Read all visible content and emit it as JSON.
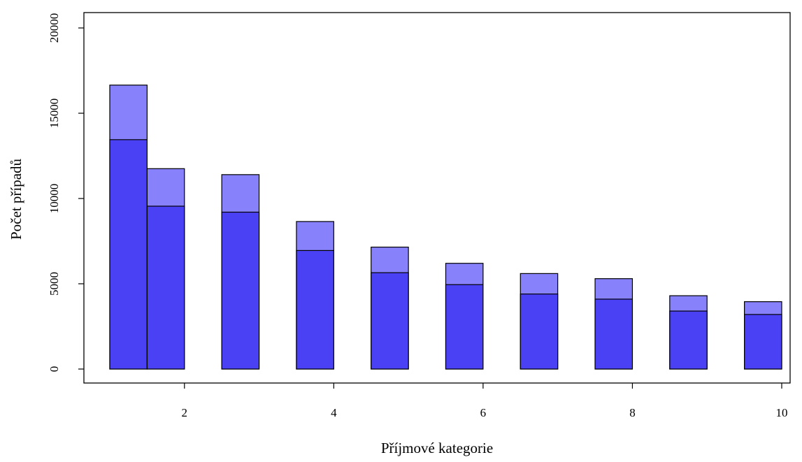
{
  "chart_data": {
    "type": "bar",
    "title": "",
    "xlabel": "Příjmové kategorie",
    "ylabel": "Počet případů",
    "xlim": [
      0.6,
      10.2
    ],
    "ylim": [
      0,
      20000
    ],
    "x_ticks": [
      2,
      4,
      6,
      8,
      10
    ],
    "y_ticks": [
      0,
      5000,
      10000,
      15000,
      20000
    ],
    "grid": false,
    "legend": "none",
    "bars": [
      {
        "x_start": 1.0,
        "x_end": 1.5,
        "total": 16650,
        "lower": 13450
      },
      {
        "x_start": 1.5,
        "x_end": 2.0,
        "total": 11750,
        "lower": 9550
      },
      {
        "x_start": 2.5,
        "x_end": 3.0,
        "total": 11400,
        "lower": 9200
      },
      {
        "x_start": 3.5,
        "x_end": 4.0,
        "total": 8650,
        "lower": 6950
      },
      {
        "x_start": 4.5,
        "x_end": 5.0,
        "total": 7150,
        "lower": 5650
      },
      {
        "x_start": 5.5,
        "x_end": 6.0,
        "total": 6200,
        "lower": 4950
      },
      {
        "x_start": 6.5,
        "x_end": 7.0,
        "total": 5600,
        "lower": 4400
      },
      {
        "x_start": 7.5,
        "x_end": 8.0,
        "total": 5300,
        "lower": 4100
      },
      {
        "x_start": 8.5,
        "x_end": 9.0,
        "total": 4300,
        "lower": 3400
      },
      {
        "x_start": 9.5,
        "x_end": 10.0,
        "total": 3950,
        "lower": 3200
      }
    ],
    "colors": {
      "lower": "#4b41f4",
      "upper": "#8781fb",
      "stroke": "#000000"
    }
  }
}
